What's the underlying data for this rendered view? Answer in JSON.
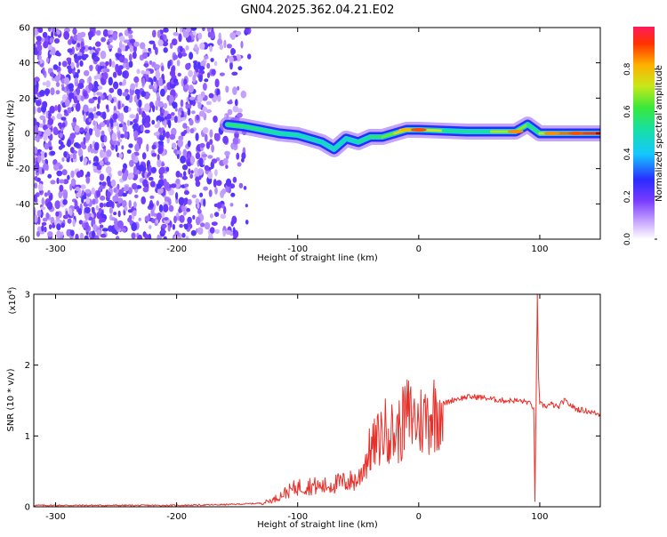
{
  "title": "GN04.2025.362.04.21.E02",
  "colors": {
    "snr_line": "#e8302a",
    "spectro_low": "#a77cff",
    "spectro_mid": "#3344ff",
    "spectro_high": "#ee1144"
  },
  "chart_data": [
    {
      "type": "heatmap",
      "name": "spectrogram",
      "xlabel": "Height of straight line (km)",
      "ylabel": "Frequency (Hz)",
      "xlim": [
        -318,
        150
      ],
      "ylim": [
        -60,
        60
      ],
      "xticks": [
        -300,
        -200,
        -100,
        0,
        100
      ],
      "xtick_labels": [
        "-300",
        "-200",
        "-100",
        "0",
        "100"
      ],
      "yticks": [
        -60,
        -40,
        -20,
        0,
        20,
        40,
        60
      ],
      "ytick_labels": [
        "-60",
        "-40",
        "-20",
        "0",
        "20",
        "40",
        "60"
      ],
      "colorbar": {
        "label": "Normalized spectral amplitude",
        "range": [
          0,
          1
        ],
        "ticks": [
          0.0,
          0.2,
          0.4,
          0.6,
          0.8
        ],
        "tick_labels": [
          "0.0",
          "0.2",
          "0.4",
          "0.6",
          "0.8"
        ]
      },
      "noise_region_x": [
        -318,
        -140
      ],
      "ridge": [
        {
          "x": -158,
          "y": 5,
          "amp": 0.55
        },
        {
          "x": -145,
          "y": 4,
          "amp": 0.6
        },
        {
          "x": -130,
          "y": 2,
          "amp": 0.5
        },
        {
          "x": -115,
          "y": 0,
          "amp": 0.55
        },
        {
          "x": -100,
          "y": -1,
          "amp": 0.45
        },
        {
          "x": -90,
          "y": -3,
          "amp": 0.5
        },
        {
          "x": -80,
          "y": -5,
          "amp": 0.45
        },
        {
          "x": -70,
          "y": -9,
          "amp": 0.5
        },
        {
          "x": -60,
          "y": -3,
          "amp": 0.45
        },
        {
          "x": -50,
          "y": -5,
          "amp": 0.5
        },
        {
          "x": -40,
          "y": -2,
          "amp": 0.55
        },
        {
          "x": -30,
          "y": -2,
          "amp": 0.6
        },
        {
          "x": -20,
          "y": 0,
          "amp": 0.7
        },
        {
          "x": -10,
          "y": 2,
          "amp": 0.8
        },
        {
          "x": 0,
          "y": 2,
          "amp": 0.9
        },
        {
          "x": 20,
          "y": 1.5,
          "amp": 0.55
        },
        {
          "x": 40,
          "y": 1,
          "amp": 0.5
        },
        {
          "x": 60,
          "y": 1,
          "amp": 0.55
        },
        {
          "x": 80,
          "y": 1,
          "amp": 0.85
        },
        {
          "x": 90,
          "y": 5,
          "amp": 0.5
        },
        {
          "x": 100,
          "y": 0,
          "amp": 0.6
        },
        {
          "x": 110,
          "y": 0,
          "amp": 0.85
        },
        {
          "x": 130,
          "y": 0,
          "amp": 0.9
        },
        {
          "x": 150,
          "y": 0,
          "amp": 0.95
        }
      ]
    },
    {
      "type": "line",
      "name": "snr",
      "xlabel": "Height of straight line (km)",
      "ylabel": "SNR (10 * v/v)",
      "scale_label": "(x10",
      "scale_exp": "4",
      "scale_close": ")",
      "xlim": [
        -318,
        150
      ],
      "ylim": [
        0,
        3
      ],
      "xticks": [
        -300,
        -200,
        -100,
        0,
        100
      ],
      "xtick_labels": [
        "-300",
        "-200",
        "-100",
        "0",
        "100"
      ],
      "yticks": [
        0,
        1,
        2,
        3
      ],
      "ytick_labels": [
        "0",
        "1",
        "2",
        "3"
      ],
      "x": [
        -318,
        -250,
        -200,
        -160,
        -130,
        -120,
        -110,
        -100,
        -90,
        -80,
        -70,
        -60,
        -50,
        -45,
        -40,
        -35,
        -30,
        -25,
        -20,
        -15,
        -10,
        -5,
        0,
        10,
        20,
        30,
        40,
        50,
        60,
        70,
        80,
        90,
        95,
        96,
        97,
        98,
        99,
        100,
        105,
        110,
        115,
        120,
        130,
        140,
        150
      ],
      "y": [
        0.02,
        0.02,
        0.02,
        0.03,
        0.05,
        0.1,
        0.2,
        0.28,
        0.3,
        0.28,
        0.32,
        0.35,
        0.38,
        0.6,
        0.8,
        0.9,
        1.05,
        1.1,
        1.0,
        1.1,
        1.3,
        1.25,
        1.2,
        1.3,
        1.45,
        1.52,
        1.55,
        1.55,
        1.52,
        1.5,
        1.5,
        1.48,
        1.4,
        0.1,
        1.5,
        3.0,
        1.8,
        1.45,
        1.42,
        1.45,
        1.4,
        1.5,
        1.38,
        1.35,
        1.3
      ]
    }
  ]
}
